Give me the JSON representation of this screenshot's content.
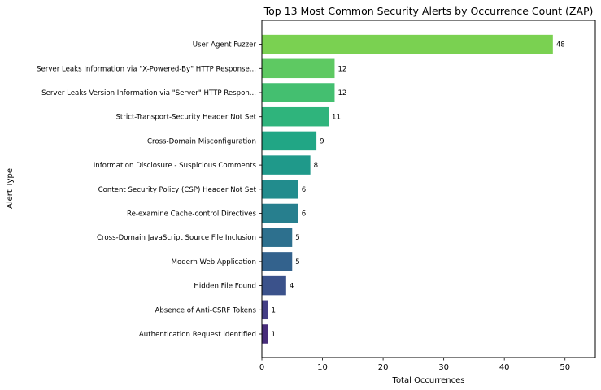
{
  "chart_data": {
    "type": "bar",
    "orientation": "horizontal",
    "title": "Top 13 Most Common Security Alerts by Occurrence Count (ZAP)",
    "xlabel": "Total Occurrences",
    "ylabel": "Alert Type",
    "xlim": [
      0,
      55
    ],
    "xticks": [
      "0",
      "10",
      "20",
      "30",
      "40",
      "50"
    ],
    "grid": false,
    "categories": [
      "User Agent Fuzzer",
      "Server Leaks Information via \"X-Powered-By\" HTTP Response...",
      "Server Leaks Version Information via \"Server\" HTTP Respon...",
      "Strict-Transport-Security Header Not Set",
      "Cross-Domain Misconfiguration",
      "Information Disclosure - Suspicious Comments",
      "Content Security Policy (CSP) Header Not Set",
      "Re-examine Cache-control Directives",
      "Cross-Domain JavaScript Source File Inclusion",
      "Modern Web Application",
      "Hidden File Found",
      "Absence of Anti-CSRF Tokens",
      "Authentication Request Identified"
    ],
    "values": [
      48,
      12,
      12,
      11,
      9,
      8,
      6,
      6,
      5,
      5,
      4,
      1,
      1
    ],
    "value_labels": [
      "48",
      "12",
      "12",
      "11",
      "9",
      "8",
      "6",
      "6",
      "5",
      "5",
      "4",
      "1",
      "1"
    ],
    "colors": [
      "#7ad151",
      "#5ec962",
      "#44bf70",
      "#2fb47c",
      "#21a685",
      "#1f998a",
      "#228c8d",
      "#277f8e",
      "#2d708e",
      "#33628d",
      "#3b528b",
      "#433e85",
      "#472c7a"
    ]
  }
}
